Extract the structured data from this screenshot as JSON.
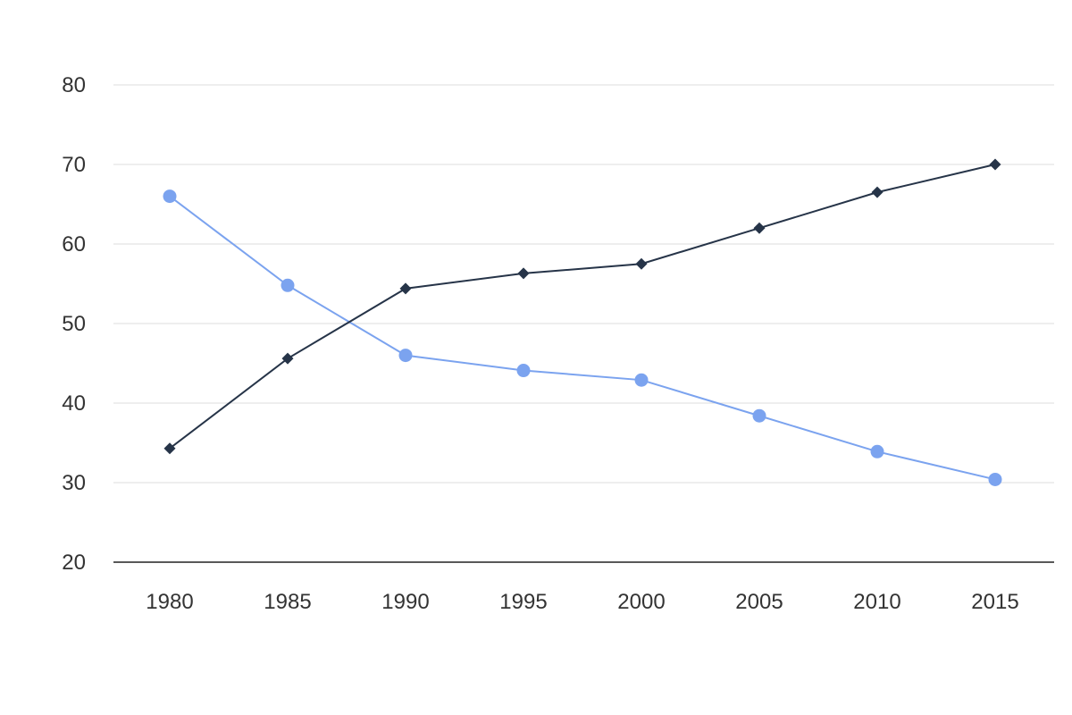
{
  "chart_data": {
    "type": "line",
    "x": [
      1980,
      1985,
      1990,
      1995,
      2000,
      2005,
      2010,
      2015
    ],
    "categories": [
      "1980",
      "1985",
      "1990",
      "1995",
      "2000",
      "2005",
      "2010",
      "2015"
    ],
    "series": [
      {
        "color": "#7ba3ef",
        "marker": "circle",
        "values": [
          66,
          54.8,
          46,
          44.1,
          42.9,
          38.4,
          33.9,
          30.4
        ]
      },
      {
        "color": "#263448",
        "marker": "diamond",
        "values": [
          34.3,
          45.6,
          54.4,
          56.3,
          57.5,
          62,
          66.5,
          70
        ]
      }
    ],
    "title": "",
    "xlabel": "",
    "ylabel": "",
    "ylim": [
      20,
      80
    ],
    "yticks": [
      "20",
      "30",
      "40",
      "50",
      "60",
      "70",
      "80"
    ],
    "grid": true,
    "legend": "none"
  }
}
